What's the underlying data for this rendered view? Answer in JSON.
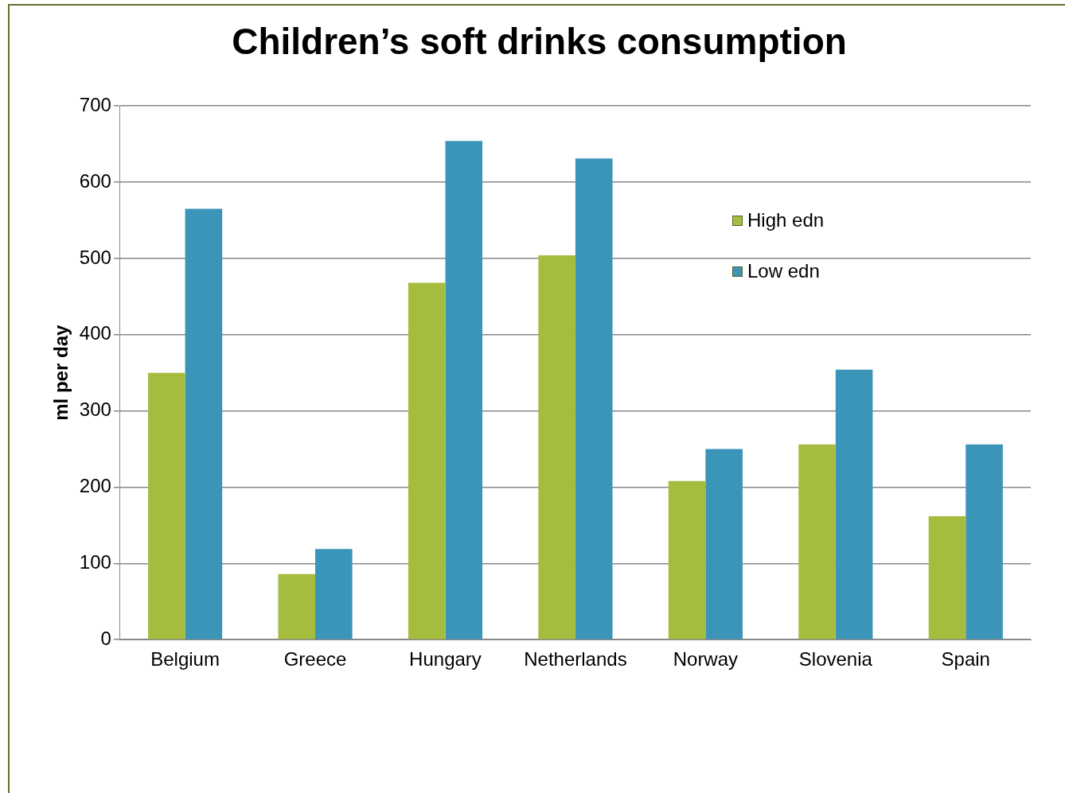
{
  "chart_data": {
    "type": "bar",
    "title": "Children’s soft drinks consumption",
    "ylabel": "ml per day",
    "categories": [
      "Belgium",
      "Greece",
      "Hungary",
      "Netherlands",
      "Norway",
      "Slovenia",
      "Spain"
    ],
    "series": [
      {
        "name": "High edn",
        "color": "#a5bd3f",
        "values": [
          350,
          86,
          468,
          504,
          208,
          256,
          162
        ]
      },
      {
        "name": "Low edn",
        "color": "#3a95b8",
        "values": [
          565,
          119,
          654,
          631,
          250,
          354,
          256
        ]
      }
    ],
    "ylim": [
      0,
      700
    ],
    "yticks": [
      0,
      100,
      200,
      300,
      400,
      500,
      600,
      700
    ],
    "grid": "y",
    "legend": "top right"
  }
}
